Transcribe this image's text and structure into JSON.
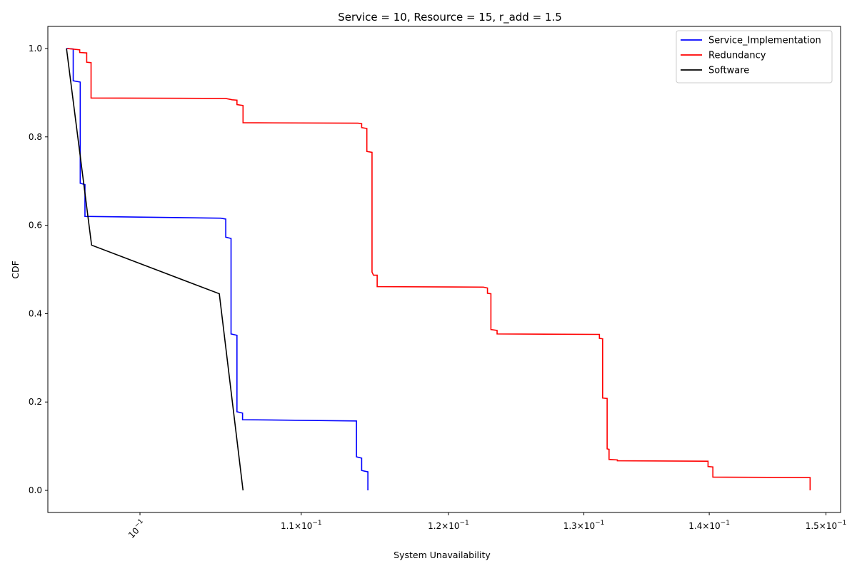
{
  "chart_data": {
    "type": "line",
    "title": "Service = 10, Resource = 15, r_add = 1.5",
    "xlabel": "System Unavailability",
    "ylabel": "CDF",
    "xscale": "log",
    "xlim": [
      0.0947,
      0.1513
    ],
    "ylim": [
      -0.05,
      1.05
    ],
    "grid": false,
    "legend_position": "top-right",
    "x_ticks": [
      {
        "value": 0.1,
        "base": "10",
        "exp": "−1",
        "rotated": true
      },
      {
        "value": 0.11,
        "mant": "1.1",
        "base": "10",
        "exp": "−1"
      },
      {
        "value": 0.12,
        "mant": "1.2",
        "base": "10",
        "exp": "−1"
      },
      {
        "value": 0.13,
        "mant": "1.3",
        "base": "10",
        "exp": "−1"
      },
      {
        "value": 0.14,
        "mant": "1.4",
        "base": "10",
        "exp": "−1"
      },
      {
        "value": 0.15,
        "mant": "1.5",
        "base": "10",
        "exp": "−1"
      }
    ],
    "y_ticks": [
      {
        "value": 0.0,
        "label": "0.0"
      },
      {
        "value": 0.2,
        "label": "0.2"
      },
      {
        "value": 0.4,
        "label": "0.4"
      },
      {
        "value": 0.6,
        "label": "0.6"
      },
      {
        "value": 0.8,
        "label": "0.8"
      },
      {
        "value": 1.0,
        "label": "1.0"
      }
    ],
    "series": [
      {
        "name": "Service_Implementation",
        "color": "#0000ff",
        "points": [
          [
            0.09575,
            1.0
          ],
          [
            0.09613,
            0.999
          ],
          [
            0.09613,
            0.927
          ],
          [
            0.09653,
            0.924
          ],
          [
            0.09653,
            0.695
          ],
          [
            0.0968,
            0.692
          ],
          [
            0.0968,
            0.62
          ],
          [
            0.1049,
            0.616
          ],
          [
            0.1052,
            0.614
          ],
          [
            0.1052,
            0.573
          ],
          [
            0.10553,
            0.57
          ],
          [
            0.10553,
            0.354
          ],
          [
            0.1059,
            0.351
          ],
          [
            0.1059,
            0.178
          ],
          [
            0.10625,
            0.175
          ],
          [
            0.10625,
            0.16
          ],
          [
            0.11365,
            0.157
          ],
          [
            0.11365,
            0.076
          ],
          [
            0.114,
            0.073
          ],
          [
            0.114,
            0.045
          ],
          [
            0.11442,
            0.042
          ],
          [
            0.11442,
            0.0
          ]
        ]
      },
      {
        "name": "Redundancy",
        "color": "#ff0000",
        "points": [
          [
            0.0958,
            1.0
          ],
          [
            0.0965,
            0.997
          ],
          [
            0.0965,
            0.991
          ],
          [
            0.0969,
            0.99
          ],
          [
            0.0969,
            0.969
          ],
          [
            0.09715,
            0.968
          ],
          [
            0.09715,
            0.888
          ],
          [
            0.1052,
            0.887
          ],
          [
            0.1056,
            0.884
          ],
          [
            0.1059,
            0.883
          ],
          [
            0.1059,
            0.873
          ],
          [
            0.10628,
            0.871
          ],
          [
            0.10628,
            0.832
          ],
          [
            0.11375,
            0.831
          ],
          [
            0.114,
            0.83
          ],
          [
            0.114,
            0.821
          ],
          [
            0.11435,
            0.819
          ],
          [
            0.11435,
            0.767
          ],
          [
            0.1147,
            0.765
          ],
          [
            0.1147,
            0.494
          ],
          [
            0.1148,
            0.487
          ],
          [
            0.11505,
            0.487
          ],
          [
            0.11505,
            0.461
          ],
          [
            0.1225,
            0.46
          ],
          [
            0.1228,
            0.458
          ],
          [
            0.1228,
            0.446
          ],
          [
            0.12305,
            0.445
          ],
          [
            0.12305,
            0.364
          ],
          [
            0.1235,
            0.362
          ],
          [
            0.1235,
            0.354
          ],
          [
            0.1312,
            0.353
          ],
          [
            0.1312,
            0.344
          ],
          [
            0.13145,
            0.343
          ],
          [
            0.13145,
            0.209
          ],
          [
            0.1318,
            0.208
          ],
          [
            0.1318,
            0.094
          ],
          [
            0.13195,
            0.093
          ],
          [
            0.13195,
            0.07
          ],
          [
            0.1326,
            0.069
          ],
          [
            0.1326,
            0.067
          ],
          [
            0.1399,
            0.066
          ],
          [
            0.1399,
            0.054
          ],
          [
            0.1403,
            0.053
          ],
          [
            0.1403,
            0.03
          ],
          [
            0.1486,
            0.029
          ],
          [
            0.1486,
            0.0
          ]
        ]
      },
      {
        "name": "Software",
        "color": "#000000",
        "points": [
          [
            0.09575,
            1.0
          ],
          [
            0.09718,
            0.555
          ],
          [
            0.1048,
            0.445
          ],
          [
            0.10628,
            0.0
          ]
        ]
      }
    ]
  }
}
